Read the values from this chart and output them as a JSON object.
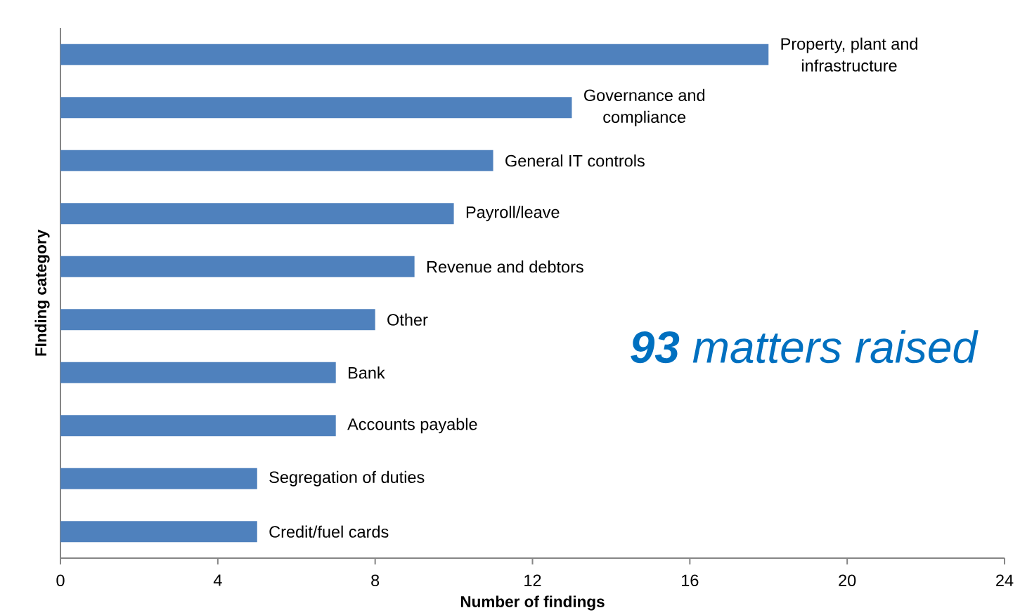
{
  "chart_data": {
    "type": "bar",
    "orientation": "horizontal",
    "categories": [
      "Property, plant and infrastructure",
      "Governance and compliance",
      "General IT controls",
      "Payroll/leave",
      "Revenue and debtors",
      "Other",
      "Bank",
      "Accounts payable",
      "Segregation of duties",
      "Credit/fuel cards"
    ],
    "values": [
      18,
      13,
      11,
      10,
      9,
      8,
      7,
      7,
      5,
      5
    ],
    "color": "#4f81bd",
    "xlim": [
      0,
      24
    ],
    "xticks": [
      0,
      4,
      8,
      12,
      16,
      20,
      24
    ],
    "xlabel": "Number of findings",
    "ylabel": "FInding category",
    "annotations": [
      "**93** matters raised"
    ],
    "tick_labels": "x"
  }
}
